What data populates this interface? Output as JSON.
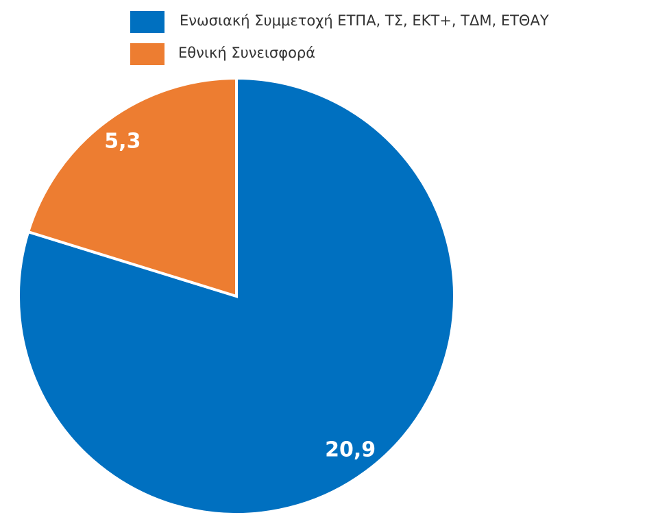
{
  "chart_data": {
    "type": "pie",
    "categories": [
      "Ενωσιακή Συμμετοχή ΕΤΠΑ, ΤΣ, ΕΚΤ+, ΤΔΜ, ΕΤΘΑΥ",
      "Εθνική Συνεισφορά"
    ],
    "values": [
      20.9,
      5.3
    ],
    "value_labels": [
      "20,9",
      "5,3"
    ],
    "colors": [
      "#0070c0",
      "#ed7d31"
    ]
  }
}
